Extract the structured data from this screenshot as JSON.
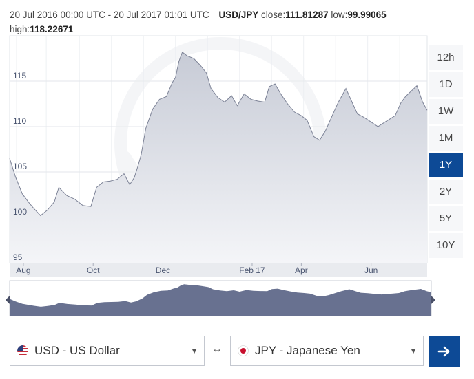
{
  "header": {
    "range_label": "20 Jul 2016 00:00 UTC - 20 Jul 2017 01:01 UTC",
    "pair": "USD/JPY",
    "close_label": "close:",
    "close_value": "111.81287",
    "low_label": "low:",
    "low_value": "99.99065",
    "high_label": "high:",
    "high_value": "118.22671"
  },
  "range_buttons": [
    "12h",
    "1D",
    "1W",
    "1M",
    "1Y",
    "2Y",
    "5Y",
    "10Y"
  ],
  "active_range": "1Y",
  "from_currency": {
    "label": "USD - US Dollar"
  },
  "to_currency": {
    "label": "JPY - Japanese Yen"
  },
  "swap_symbol": "↔",
  "colors": {
    "area_top": "#c7cbd6",
    "area_bottom": "#f4f5f8",
    "line": "#7c8296",
    "nav_fill": "#687190",
    "accent": "#0d4a96"
  },
  "chart_data": {
    "type": "area",
    "series": [
      {
        "x": [
          "2016-07-20",
          "2016-07-25",
          "2016-07-31",
          "2016-08-06",
          "2016-08-10",
          "2016-08-16",
          "2016-08-22",
          "2016-08-28",
          "2016-09-01",
          "2016-09-08",
          "2016-09-15",
          "2016-09-22",
          "2016-09-29",
          "2016-10-04",
          "2016-10-10",
          "2016-10-16",
          "2016-10-22",
          "2016-10-28",
          "2016-11-02",
          "2016-11-06",
          "2016-11-09",
          "2016-11-12",
          "2016-11-16",
          "2016-11-22",
          "2016-11-28",
          "2016-12-04",
          "2016-12-09",
          "2016-12-12",
          "2016-12-15",
          "2016-12-18",
          "2016-12-22",
          "2016-12-28",
          "2017-01-03",
          "2017-01-08",
          "2017-01-12",
          "2017-01-18",
          "2017-01-24",
          "2017-01-30",
          "2017-02-04",
          "2017-02-10",
          "2017-02-16",
          "2017-02-22",
          "2017-02-28",
          "2017-03-04",
          "2017-03-09",
          "2017-03-14",
          "2017-03-20",
          "2017-03-26",
          "2017-04-01",
          "2017-04-06",
          "2017-04-12",
          "2017-04-17",
          "2017-04-22",
          "2017-04-28",
          "2017-05-03",
          "2017-05-10",
          "2017-05-16",
          "2017-05-20",
          "2017-05-26",
          "2017-06-01",
          "2017-06-07",
          "2017-06-12",
          "2017-06-17",
          "2017-06-22",
          "2017-06-27",
          "2017-07-01",
          "2017-07-06",
          "2017-07-11",
          "2017-07-16",
          "2017-07-20"
        ],
        "values": [
          106.5,
          104.5,
          102.6,
          101.6,
          101.0,
          100.2,
          100.8,
          101.7,
          103.3,
          102.4,
          102.0,
          101.3,
          101.2,
          103.3,
          103.9,
          104.0,
          104.2,
          104.8,
          103.6,
          104.4,
          105.6,
          106.9,
          109.8,
          111.9,
          113.0,
          113.3,
          114.8,
          115.4,
          117.2,
          118.2,
          117.8,
          117.5,
          116.7,
          115.9,
          114.2,
          113.2,
          112.7,
          113.4,
          112.3,
          113.6,
          113.0,
          112.8,
          112.7,
          114.4,
          114.7,
          113.6,
          112.5,
          111.6,
          111.2,
          110.7,
          108.9,
          108.5,
          109.5,
          111.2,
          112.6,
          114.2,
          112.5,
          111.4,
          111.0,
          110.5,
          110.0,
          110.4,
          110.8,
          111.2,
          112.6,
          113.3,
          113.9,
          114.5,
          112.7,
          111.8
        ]
      }
    ],
    "x_tick_labels": [
      "Aug",
      "Oct",
      "Dec",
      "Feb 17",
      "Apr",
      "Jun"
    ],
    "y_tick_labels": [
      "95",
      "100",
      "105",
      "110",
      "115"
    ],
    "ylim": [
      95,
      120
    ],
    "grid": true
  }
}
